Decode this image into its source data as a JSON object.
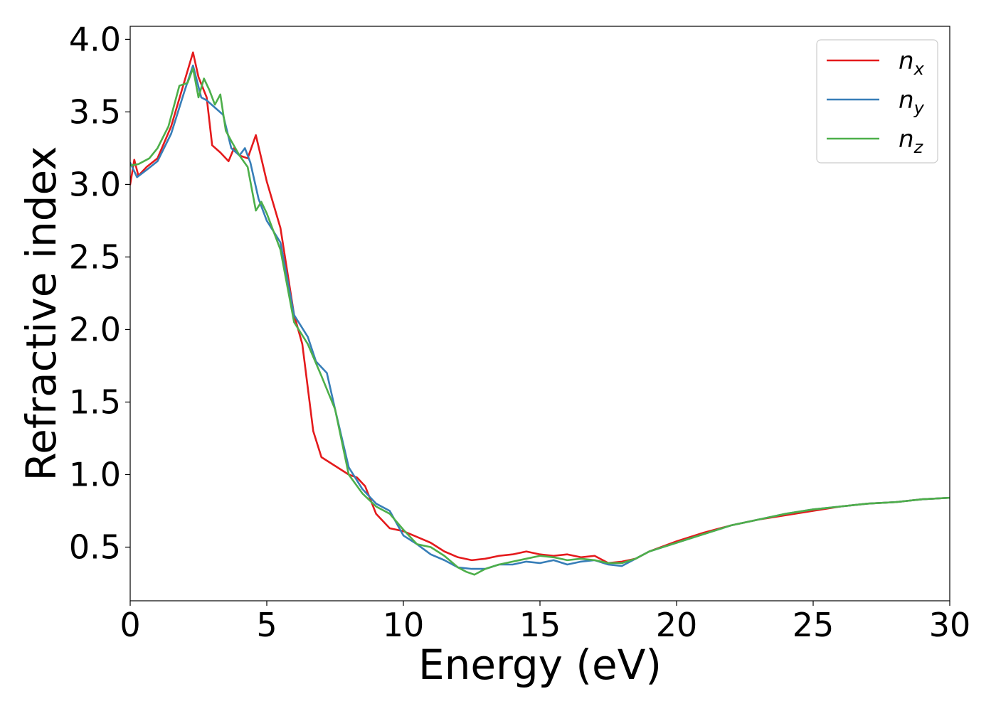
{
  "chart_data": {
    "type": "line",
    "title": "",
    "xlabel": "Energy (eV)",
    "ylabel": "Refractive index",
    "xlim": [
      0,
      30
    ],
    "ylim": [
      0.13,
      4.09
    ],
    "xticks": [
      0,
      5,
      10,
      15,
      20,
      25,
      30
    ],
    "xtick_labels": [
      "0",
      "5",
      "10",
      "15",
      "20",
      "25",
      "30"
    ],
    "yticks": [
      0.5,
      1.0,
      1.5,
      2.0,
      2.5,
      3.0,
      3.5,
      4.0
    ],
    "ytick_labels": [
      "0.5",
      "1.0",
      "1.5",
      "2.0",
      "2.5",
      "3.0",
      "3.5",
      "4.0"
    ],
    "grid": false,
    "legend_position": "top-right",
    "series": [
      {
        "name": "n_x",
        "label_base": "n",
        "label_sub": "x",
        "color": "#e41a1c",
        "x": [
          0,
          0.15,
          0.3,
          0.6,
          1.0,
          1.5,
          2.0,
          2.3,
          2.5,
          2.8,
          3.0,
          3.3,
          3.6,
          3.8,
          4.0,
          4.3,
          4.6,
          4.8,
          5.0,
          5.5,
          6.0,
          6.3,
          6.5,
          6.7,
          7.0,
          7.5,
          8.0,
          8.3,
          8.6,
          9.0,
          9.5,
          10.0,
          10.5,
          11.0,
          11.5,
          12.0,
          12.5,
          13.0,
          13.5,
          14.0,
          14.5,
          15.0,
          15.5,
          16.0,
          16.5,
          17.0,
          17.5,
          18.0,
          18.5,
          19.0,
          20.0,
          21.0,
          22.0,
          23.0,
          24.0,
          25.0,
          26.0,
          27.0,
          28.0,
          29.0,
          30.0
        ],
        "y": [
          3.0,
          3.17,
          3.06,
          3.12,
          3.18,
          3.4,
          3.72,
          3.91,
          3.74,
          3.6,
          3.27,
          3.22,
          3.16,
          3.25,
          3.2,
          3.18,
          3.34,
          3.18,
          3.02,
          2.7,
          2.1,
          1.9,
          1.6,
          1.3,
          1.12,
          1.06,
          1.0,
          0.98,
          0.92,
          0.73,
          0.63,
          0.61,
          0.57,
          0.53,
          0.47,
          0.43,
          0.41,
          0.42,
          0.44,
          0.45,
          0.47,
          0.45,
          0.44,
          0.45,
          0.43,
          0.44,
          0.39,
          0.4,
          0.42,
          0.47,
          0.54,
          0.6,
          0.65,
          0.69,
          0.72,
          0.75,
          0.78,
          0.8,
          0.81,
          0.83,
          0.84
        ]
      },
      {
        "name": "n_y",
        "label_base": "n",
        "label_sub": "y",
        "color": "#377eb8",
        "x": [
          0,
          0.25,
          0.6,
          1.0,
          1.5,
          2.0,
          2.3,
          2.6,
          2.8,
          3.1,
          3.4,
          3.7,
          4.0,
          4.2,
          4.4,
          4.7,
          5.0,
          5.5,
          6.0,
          6.5,
          6.8,
          7.2,
          7.5,
          8.0,
          8.5,
          9.0,
          9.5,
          10.0,
          10.5,
          11.0,
          11.5,
          12.0,
          12.5,
          13.0,
          13.5,
          14.0,
          14.5,
          15.0,
          15.5,
          16.0,
          16.5,
          17.0,
          17.5,
          18.0,
          18.5,
          19.0,
          20.0,
          21.0,
          22.0,
          23.0,
          24.0,
          25.0,
          26.0,
          27.0,
          28.0,
          29.0,
          30.0
        ],
        "y": [
          3.15,
          3.05,
          3.1,
          3.16,
          3.35,
          3.65,
          3.82,
          3.6,
          3.58,
          3.53,
          3.48,
          3.25,
          3.2,
          3.25,
          3.15,
          2.9,
          2.75,
          2.6,
          2.1,
          1.95,
          1.78,
          1.7,
          1.45,
          1.05,
          0.9,
          0.8,
          0.75,
          0.58,
          0.52,
          0.45,
          0.41,
          0.36,
          0.35,
          0.35,
          0.38,
          0.38,
          0.4,
          0.39,
          0.41,
          0.38,
          0.4,
          0.41,
          0.38,
          0.37,
          0.42,
          0.47,
          0.53,
          0.59,
          0.65,
          0.69,
          0.73,
          0.76,
          0.78,
          0.8,
          0.81,
          0.83,
          0.84
        ]
      },
      {
        "name": "n_z",
        "label_base": "n",
        "label_sub": "z",
        "color": "#4daf4a",
        "x": [
          0,
          0.3,
          0.7,
          1.0,
          1.4,
          1.8,
          2.1,
          2.3,
          2.5,
          2.7,
          2.9,
          3.1,
          3.3,
          3.5,
          3.7,
          4.0,
          4.3,
          4.6,
          4.8,
          5.0,
          5.5,
          6.0,
          6.5,
          7.0,
          7.5,
          8.0,
          8.5,
          9.0,
          9.5,
          10.0,
          10.5,
          11.0,
          11.5,
          12.0,
          12.3,
          12.6,
          13.0,
          13.5,
          14.0,
          14.5,
          15.0,
          15.5,
          16.0,
          16.5,
          17.0,
          17.5,
          18.0,
          18.5,
          19.0,
          20.0,
          21.0,
          22.0,
          23.0,
          24.0,
          25.0,
          26.0,
          27.0,
          28.0,
          29.0,
          30.0
        ],
        "y": [
          3.13,
          3.14,
          3.18,
          3.25,
          3.4,
          3.68,
          3.7,
          3.8,
          3.6,
          3.73,
          3.65,
          3.55,
          3.62,
          3.37,
          3.3,
          3.2,
          3.12,
          2.82,
          2.88,
          2.8,
          2.55,
          2.05,
          1.9,
          1.68,
          1.45,
          1.0,
          0.87,
          0.78,
          0.73,
          0.62,
          0.52,
          0.5,
          0.44,
          0.36,
          0.33,
          0.31,
          0.35,
          0.38,
          0.4,
          0.42,
          0.44,
          0.43,
          0.41,
          0.42,
          0.41,
          0.39,
          0.39,
          0.42,
          0.47,
          0.53,
          0.59,
          0.65,
          0.69,
          0.73,
          0.76,
          0.78,
          0.8,
          0.81,
          0.83,
          0.84
        ]
      }
    ]
  }
}
